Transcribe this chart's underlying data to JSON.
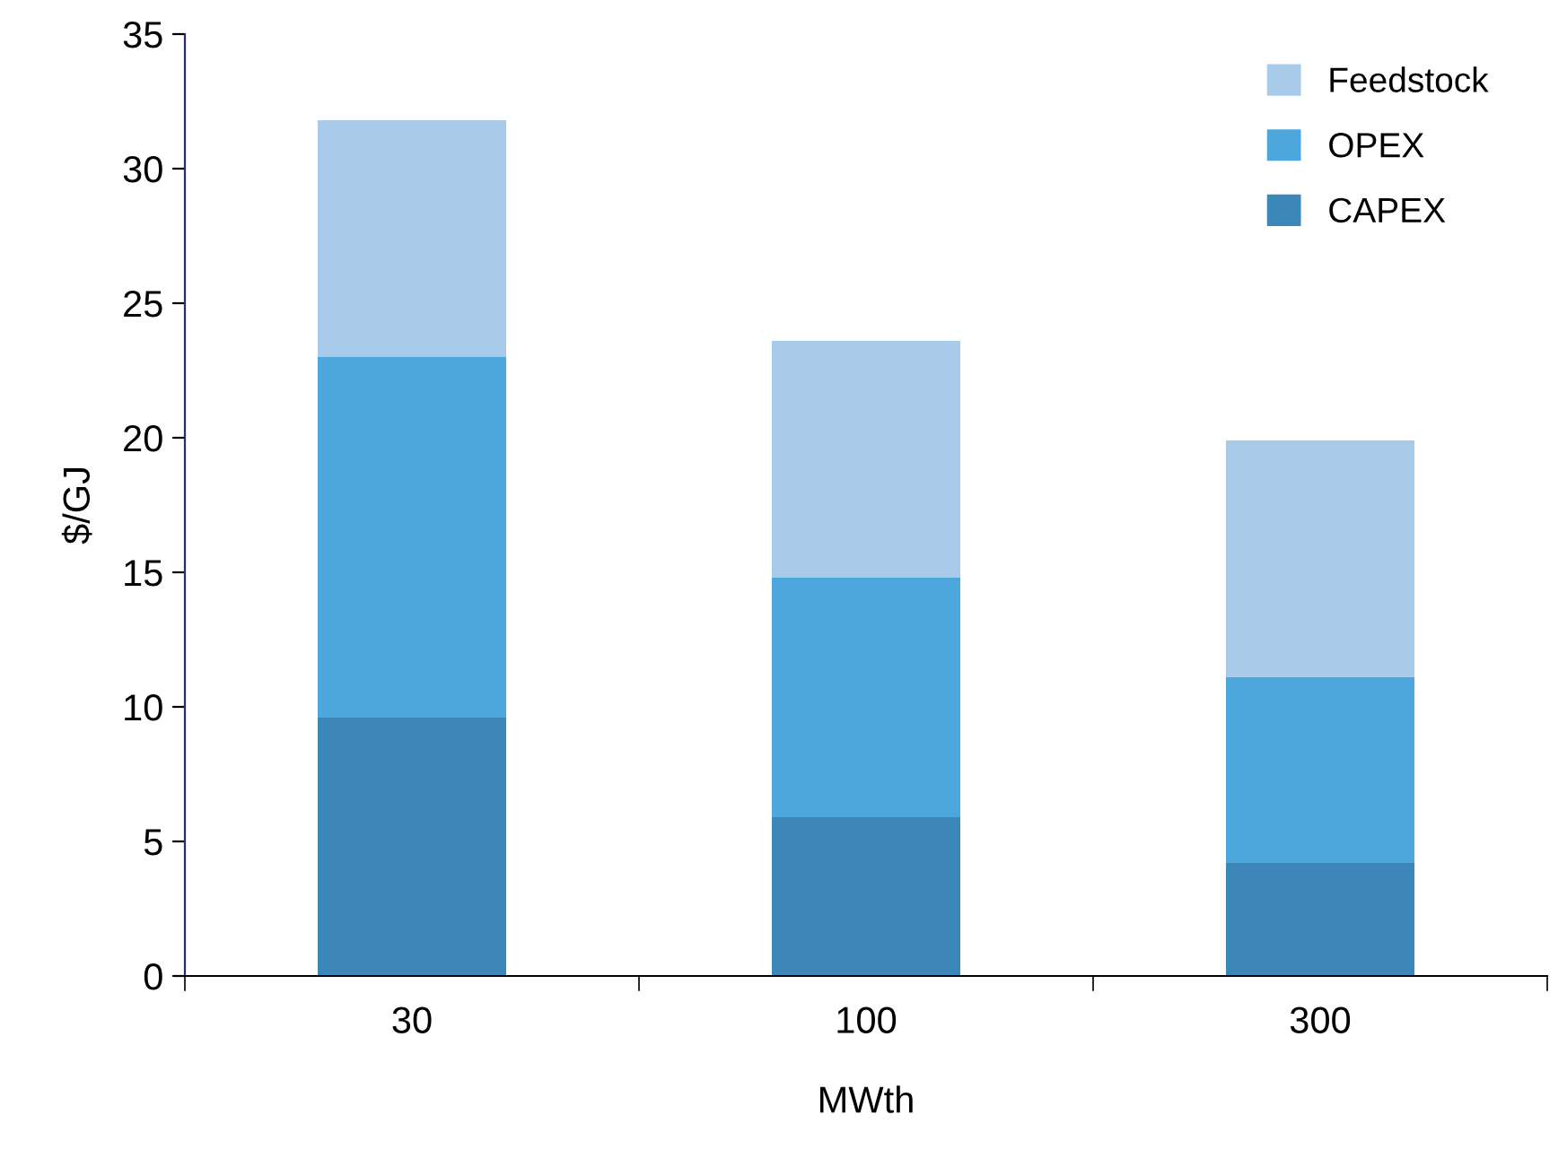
{
  "chart_data": {
    "type": "bar",
    "stacked": true,
    "xlabel": "MWth",
    "ylabel": "$/GJ",
    "categories": [
      "30",
      "100",
      "300"
    ],
    "series": [
      {
        "name": "CAPEX",
        "color": "#3d87b8",
        "values": [
          9.6,
          5.9,
          4.2
        ]
      },
      {
        "name": "OPEX",
        "color": "#4da6dc",
        "values": [
          13.4,
          8.9,
          6.9
        ]
      },
      {
        "name": "Feedstock",
        "color": "#a9cbea",
        "values": [
          8.8,
          8.8,
          8.8
        ]
      }
    ],
    "ylim": [
      0,
      35
    ],
    "yticks": [
      0,
      5,
      10,
      15,
      20,
      25,
      30,
      35
    ],
    "grid": false,
    "legend": "top right"
  }
}
